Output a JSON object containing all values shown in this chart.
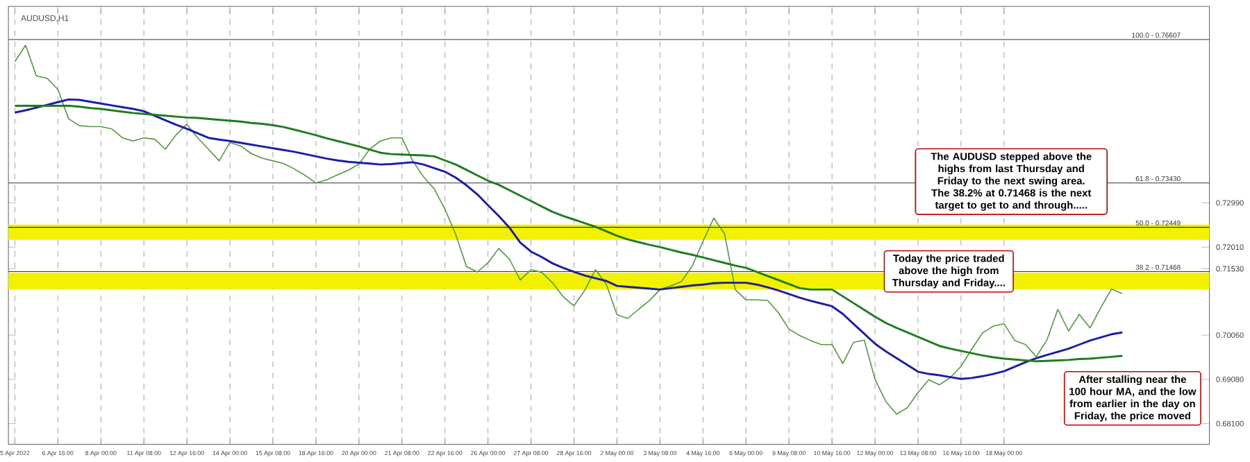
{
  "chart_data": {
    "type": "line",
    "title": "AUDUSD,H1",
    "categories": [
      "5 Apr 2022",
      null,
      null,
      null,
      "6 Apr 16:00",
      null,
      null,
      null,
      "8 Apr 00:00",
      null,
      null,
      null,
      "11 Apr 08:00",
      null,
      null,
      null,
      "12 Apr 16:00",
      null,
      null,
      null,
      "14 Apr 00:00",
      null,
      null,
      null,
      "15 Apr 08:00",
      null,
      null,
      null,
      "18 Apr 16:00",
      null,
      null,
      null,
      "20 Apr 00:00",
      null,
      null,
      null,
      "21 Apr 08:00",
      null,
      null,
      null,
      "22 Apr 16:00",
      null,
      null,
      null,
      "26 Apr 00:00",
      null,
      null,
      null,
      "27 Apr 08:00",
      null,
      null,
      null,
      "28 Apr 16:00",
      null,
      null,
      null,
      "2 May 00:00",
      null,
      null,
      null,
      "3 May 08:00",
      null,
      null,
      null,
      "4 May 16:00",
      null,
      null,
      null,
      "6 May 00:00",
      null,
      null,
      null,
      "9 May 08:00",
      null,
      null,
      null,
      "10 May 16:00",
      null,
      null,
      null,
      "12 May 00:00",
      null,
      null,
      null,
      "13 May 08:00",
      null,
      null,
      null,
      "16 May 16:00",
      null,
      null,
      null,
      "18 May 00:00",
      null,
      null,
      null,
      null,
      null,
      null,
      null,
      null,
      null,
      null,
      null,
      null,
      null,
      null,
      null,
      null,
      null,
      null
    ],
    "ylim": [
      0.6764,
      0.7734
    ],
    "yticks": [
      {
        "value": 0.7299,
        "label": "0.72990"
      },
      {
        "value": 0.7201,
        "label": "0.72010"
      },
      {
        "value": 0.7153,
        "label": "0.71530"
      },
      {
        "value": 0.7006,
        "label": "0.70060"
      },
      {
        "value": 0.6908,
        "label": "0.69080"
      },
      {
        "value": 0.681,
        "label": "0.68100"
      }
    ],
    "grid": "x",
    "marker": "none",
    "line_style": "solid",
    "series": [
      {
        "color": "#4f9a3c",
        "values": [
          0.7612,
          0.7648,
          0.758,
          0.7575,
          0.755,
          0.7485,
          0.747,
          0.7468,
          0.7468,
          0.7463,
          0.7443,
          0.7436,
          0.7443,
          0.744,
          0.7418,
          0.745,
          0.7473,
          0.7443,
          0.7418,
          0.7392,
          0.7433,
          0.7425,
          0.7408,
          0.7398,
          0.7392,
          0.7386,
          0.7374,
          0.736,
          0.7343,
          0.735,
          0.7361,
          0.7371,
          0.7385,
          0.7418,
          0.7436,
          0.7443,
          0.7443,
          0.7392,
          0.7357,
          0.733,
          0.7285,
          0.7229,
          0.7158,
          0.7146,
          0.7166,
          0.7198,
          0.7174,
          0.7128,
          0.7151,
          0.7145,
          0.7122,
          0.7091,
          0.7071,
          0.7105,
          0.7151,
          0.7119,
          0.7051,
          0.7043,
          0.7063,
          0.7082,
          0.7107,
          0.7115,
          0.7125,
          0.7159,
          0.7214,
          0.7265,
          0.7231,
          0.7107,
          0.7084,
          0.7084,
          0.7083,
          0.7056,
          0.7019,
          0.7005,
          0.6994,
          0.6985,
          0.6985,
          0.6943,
          0.699,
          0.6995,
          0.6908,
          0.6859,
          0.6831,
          0.6845,
          0.6879,
          0.6907,
          0.6896,
          0.6912,
          0.6937,
          0.6975,
          0.7011,
          0.7026,
          0.7031,
          0.6994,
          0.6985,
          0.6958,
          0.6996,
          0.7063,
          0.7015,
          0.7052,
          0.7022,
          0.7067,
          0.7108,
          0.7098,
          null,
          null,
          null,
          null,
          null,
          null,
          null
        ]
      },
      {
        "color": "#1c1ca8",
        "values": [
          0.7499,
          0.7504,
          0.751,
          0.7516,
          0.7522,
          0.7528,
          0.7527,
          0.7523,
          0.7519,
          0.7515,
          0.7511,
          0.7507,
          0.7502,
          0.7492,
          0.7482,
          0.7472,
          0.7463,
          0.7453,
          0.7443,
          0.7439,
          0.7436,
          0.7432,
          0.7428,
          0.7424,
          0.742,
          0.7416,
          0.7412,
          0.7407,
          0.7402,
          0.7397,
          0.7393,
          0.739,
          0.7388,
          0.7386,
          0.7384,
          0.7385,
          0.7387,
          0.7389,
          0.7384,
          0.7376,
          0.7368,
          0.7355,
          0.7338,
          0.7318,
          0.7294,
          0.727,
          0.7244,
          0.7211,
          0.7191,
          0.7179,
          0.7165,
          0.7155,
          0.7146,
          0.7138,
          0.7132,
          0.7126,
          0.7115,
          0.7113,
          0.7111,
          0.7109,
          0.7107,
          0.711,
          0.7113,
          0.7116,
          0.7118,
          0.7121,
          0.7122,
          0.7122,
          0.7122,
          0.7118,
          0.7112,
          0.7105,
          0.7097,
          0.7089,
          0.7082,
          0.7076,
          0.707,
          0.7053,
          0.7031,
          0.7009,
          0.6987,
          0.697,
          0.6955,
          0.694,
          0.6925,
          0.692,
          0.6917,
          0.6913,
          0.6909,
          0.6911,
          0.6915,
          0.692,
          0.6926,
          0.6936,
          0.6946,
          0.6955,
          0.6962,
          0.6969,
          0.6976,
          0.6985,
          0.6994,
          0.7001,
          0.7008,
          0.7012,
          null,
          null,
          null,
          null,
          null,
          null,
          null
        ]
      },
      {
        "color": "#1e7d1e",
        "values": [
          0.7514,
          0.7514,
          0.7514,
          0.7514,
          0.7514,
          0.7514,
          0.7512,
          0.7509,
          0.7507,
          0.7504,
          0.7501,
          0.7498,
          0.7496,
          0.7494,
          0.7492,
          0.749,
          0.7488,
          0.7487,
          0.7485,
          0.7483,
          0.7481,
          0.7479,
          0.7476,
          0.7474,
          0.7471,
          0.7467,
          0.7461,
          0.7455,
          0.7449,
          0.7442,
          0.7436,
          0.743,
          0.7424,
          0.7417,
          0.741,
          0.7407,
          0.7406,
          0.7405,
          0.7404,
          0.7402,
          0.7393,
          0.7384,
          0.7372,
          0.736,
          0.7348,
          0.7339,
          0.7327,
          0.7315,
          0.7303,
          0.7291,
          0.7279,
          0.727,
          0.7262,
          0.7254,
          0.7246,
          0.7236,
          0.7226,
          0.7218,
          0.7212,
          0.7206,
          0.7201,
          0.7195,
          0.7189,
          0.7184,
          0.7178,
          0.7172,
          0.7166,
          0.716,
          0.7155,
          0.7146,
          0.7137,
          0.7128,
          0.7119,
          0.711,
          0.7107,
          0.7107,
          0.7107,
          0.7092,
          0.7077,
          0.7062,
          0.7047,
          0.7033,
          0.7022,
          0.7012,
          0.7002,
          0.6992,
          0.6982,
          0.6976,
          0.6971,
          0.6966,
          0.6961,
          0.6957,
          0.6954,
          0.6952,
          0.695,
          0.6948,
          0.6949,
          0.695,
          0.6951,
          0.6953,
          0.6954,
          0.6956,
          0.6958,
          0.696,
          null,
          null,
          null,
          null,
          null,
          null,
          null
        ]
      }
    ],
    "ref_lines": [
      {
        "axis": "y",
        "value": 0.76607,
        "color": "#333333"
      },
      {
        "axis": "y",
        "value": 0.7343,
        "color": "#333333"
      },
      {
        "axis": "y",
        "value": 0.72449,
        "color": "#333333"
      },
      {
        "axis": "y",
        "value": 0.71468,
        "color": "#333333"
      }
    ],
    "bands": [
      {
        "axis": "y",
        "from": 0.7217,
        "to": 0.7251,
        "color": "#f2f200"
      },
      {
        "axis": "y",
        "from": 0.7107,
        "to": 0.7144,
        "color": "#f2f200"
      }
    ],
    "annotations": [
      "The AUDUSD stepped above the highs from last Thursday and Friday to the next swing area. The 38.2% at 0.71468 is the next target to get to and through.....",
      "Today the price traded above the high from Thursday and Friday....",
      "After stalling near the 100 hour MA, and the low from earlier in the day on Friday, the price moved",
      {
        "text": "100.0 - 0.76607",
        "y": 0.76607
      },
      {
        "text": "61.8 - 0.73430",
        "y": 0.7343
      },
      {
        "text": "50.0 - 0.72449",
        "y": 0.72449
      },
      {
        "text": "38.2 - 0.71468",
        "y": 0.71468
      }
    ]
  }
}
